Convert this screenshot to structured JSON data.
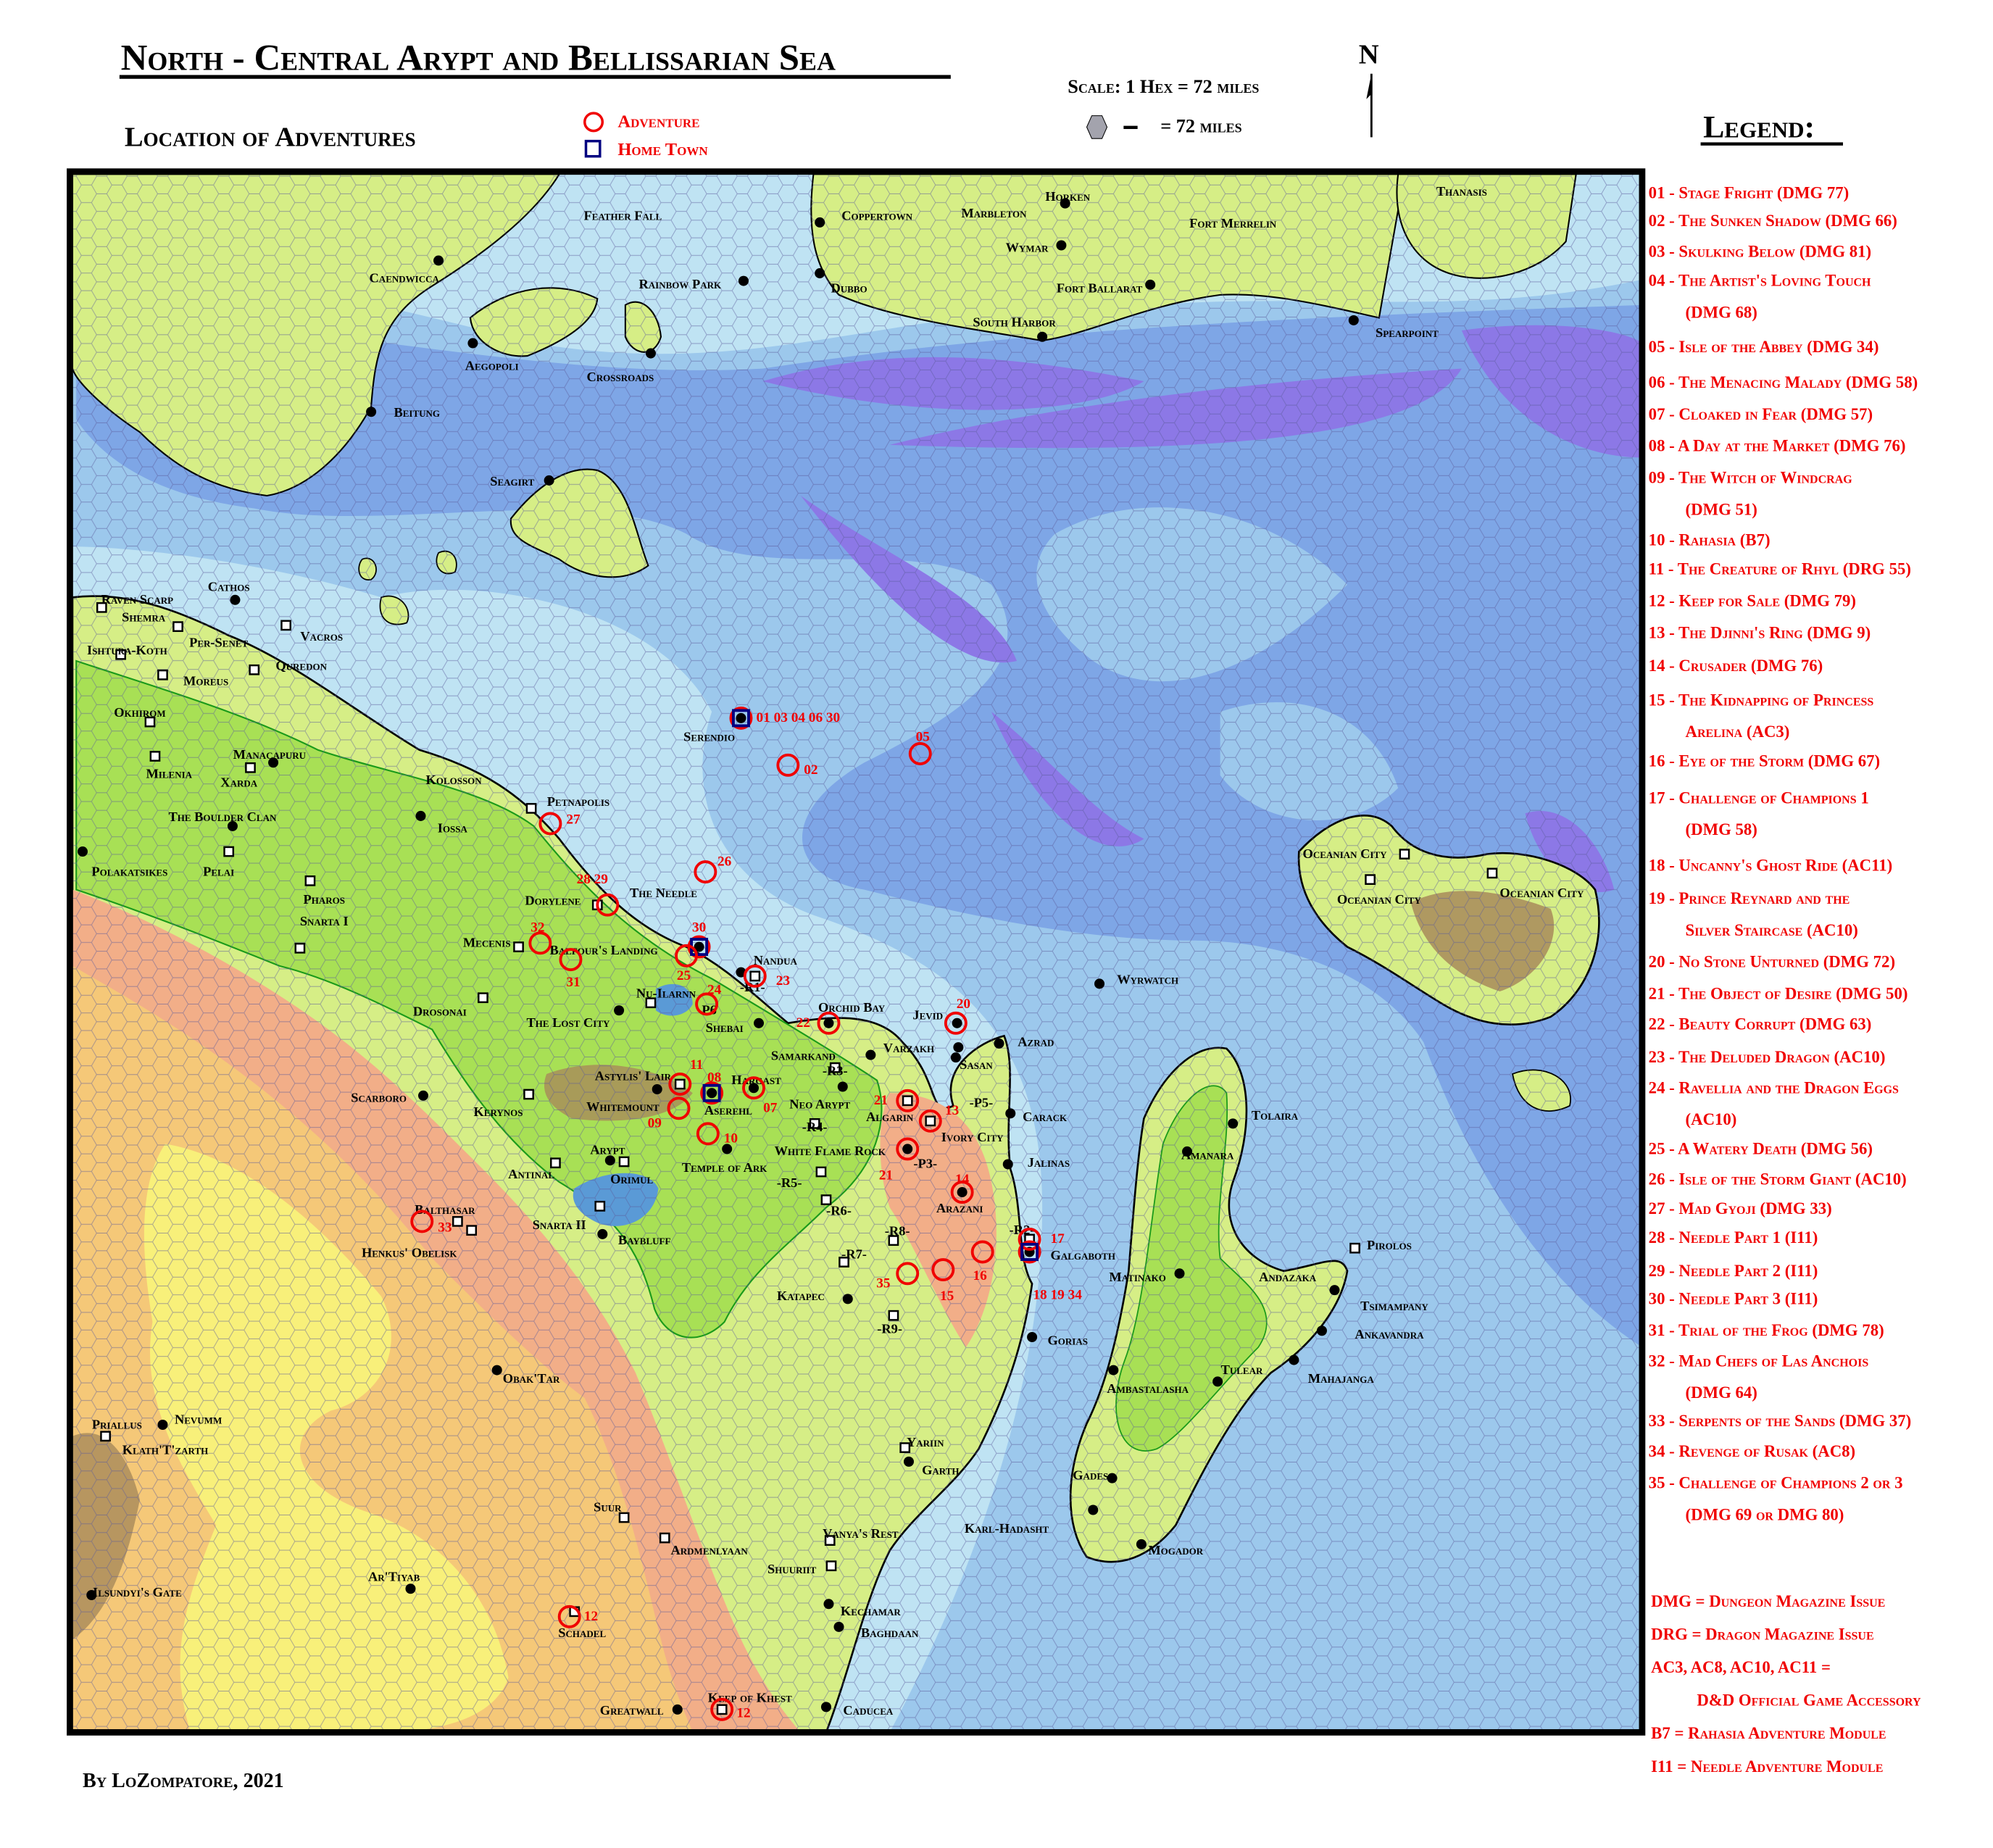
{
  "header": {
    "title": "North - Central Arypt and Bellissarian Sea",
    "subtitle": "Location of Adventures",
    "key_adventure": "Adventure",
    "key_home_town": "Home Town",
    "scale_text": "Scale: 1 Hex = 72 miles",
    "scale_hex_text": "= 72 miles",
    "north": "N",
    "credit": "By LoZompatore, 2021"
  },
  "colors": {
    "adventure": "#f00000",
    "home_town": "#000080",
    "ocean_shallow": "#bfe3f3",
    "ocean_mid": "#9cc8ec",
    "ocean_deep": "#7ea6e6",
    "ocean_trench": "#8c78e6",
    "grassland": "#d6ee86",
    "forest": "#a8e055",
    "hills": "#f2ae88",
    "desert": "#f5c878",
    "sand": "#f8f07a"
  },
  "legend": {
    "title": "Legend:",
    "entries": [
      {
        "line1": "01 - Stage Fright (DMG 77)"
      },
      {
        "line1": "02 - The Sunken Shadow (DMG 66)"
      },
      {
        "line1": "03 - Skulking Below (DMG 81)"
      },
      {
        "line1": "04 - The Artist's Loving Touch",
        "line2": "(DMG 68)"
      },
      {
        "line1": "05 - Isle of the Abbey (DMG 34)"
      },
      {
        "line1": "06 - The Menacing Malady (DMG 58)"
      },
      {
        "line1": "07 - Cloaked in Fear (DMG 57)"
      },
      {
        "line1": "08 - A Day at the Market (DMG 76)"
      },
      {
        "line1": "09 - The Witch of Windcrag",
        "line2": "(DMG 51)"
      },
      {
        "line1": "10 - Rahasia (B7)"
      },
      {
        "line1": "11 - The Creature of Rhyl (DRG 55)"
      },
      {
        "line1": "12 - Keep for Sale (DMG 79)"
      },
      {
        "line1": "13 - The Djinni's Ring (DMG 9)"
      },
      {
        "line1": "14 - Crusader (DMG 76)"
      },
      {
        "line1": "15 - The Kidnapping of Princess",
        "line2": "Arelina (AC3)"
      },
      {
        "line1": "16 - Eye of the Storm (DMG 67)"
      },
      {
        "line1": "17 - Challenge of Champions 1",
        "line2": "(DMG 58)"
      },
      {
        "line1": "18 - Uncanny's Ghost Ride (AC11)"
      },
      {
        "line1": "19 - Prince Reynard and the",
        "line2": "Silver Staircase (AC10)"
      },
      {
        "line1": "20 - No Stone Unturned (DMG 72)"
      },
      {
        "line1": "21 - The Object of Desire (DMG 50)"
      },
      {
        "line1": "22 - Beauty Corrupt (DMG 63)"
      },
      {
        "line1": "23 - The Deluded Dragon (AC10)"
      },
      {
        "line1": "24 - Ravellia and the Dragon Eggs",
        "line2": "(AC10)"
      },
      {
        "line1": "25 - A Watery Death (DMG 56)"
      },
      {
        "line1": "26 - Isle of the Storm Giant (AC10)"
      },
      {
        "line1": "27 - Mad Gyoji (DMG 33)"
      },
      {
        "line1": "28 - Needle Part 1 (I11)"
      },
      {
        "line1": "29 - Needle Part 2 (I11)"
      },
      {
        "line1": "30 - Needle Part 3 (I11)"
      },
      {
        "line1": "31 - Trial of the Frog (DMG 78)"
      },
      {
        "line1": "32 - Mad Chefs of Las Anchois",
        "line2": "(DMG 64)"
      },
      {
        "line1": "33 - Serpents of the Sands (DMG 37)"
      },
      {
        "line1": "34 - Revenge of Rusak (AC8)"
      },
      {
        "line1": "35 - Challenge of Champions 2 or 3",
        "line2": "(DMG 69 or DMG 80)"
      }
    ],
    "notes": [
      {
        "line1": "DMG = Dungeon Magazine Issue"
      },
      {
        "line1": "DRG = Dragon Magazine Issue"
      },
      {
        "line1": "AC3, AC8, AC10, AC11 =",
        "line2": "D&D Official Game Accessory"
      },
      {
        "line1": "B7 = Rahasia Adventure Module"
      },
      {
        "line1": "I11 = Needle Adventure Module"
      }
    ]
  },
  "places": [
    {
      "name": "Feather Fall",
      "marker": "none"
    },
    {
      "name": "Coppertown",
      "marker": "dot"
    },
    {
      "name": "Marbleton",
      "marker": "none"
    },
    {
      "name": "Horken",
      "marker": "dot"
    },
    {
      "name": "Fort Merrelin",
      "marker": "none"
    },
    {
      "name": "Thanasis",
      "marker": "none"
    },
    {
      "name": "Caendwicca",
      "marker": "dot"
    },
    {
      "name": "Rainbow Park",
      "marker": "dot"
    },
    {
      "name": "Dubbo",
      "marker": "dot"
    },
    {
      "name": "Wymar",
      "marker": "dot"
    },
    {
      "name": "Fort Ballarat",
      "marker": "dot"
    },
    {
      "name": "South Harbor",
      "marker": "dot"
    },
    {
      "name": "Spearpoint",
      "marker": "dot"
    },
    {
      "name": "Aegopoli",
      "marker": "dot"
    },
    {
      "name": "Crossroads",
      "marker": "dot"
    },
    {
      "name": "Beitung",
      "marker": "dot"
    },
    {
      "name": "Seagirt",
      "marker": "dot"
    },
    {
      "name": "Cathos",
      "marker": "dot"
    },
    {
      "name": "Raven Scarp",
      "marker": "none"
    },
    {
      "name": "Shemra",
      "marker": "square"
    },
    {
      "name": "Per-Senet",
      "marker": "square"
    },
    {
      "name": "Vacros",
      "marker": "square"
    },
    {
      "name": "Ishtura-Koth",
      "marker": "square"
    },
    {
      "name": "Quredon",
      "marker": "square"
    },
    {
      "name": "Moreus",
      "marker": "square"
    },
    {
      "name": "Okhirom",
      "marker": "square"
    },
    {
      "name": "Manacapuru",
      "marker": "dot"
    },
    {
      "name": "Milenia",
      "marker": "square"
    },
    {
      "name": "Xarda",
      "marker": "square"
    },
    {
      "name": "Kolosson",
      "marker": "none"
    },
    {
      "name": "Iossa",
      "marker": "dot"
    },
    {
      "name": "Petnapolis",
      "marker": "square"
    },
    {
      "name": "The Boulder Clan",
      "marker": "dot"
    },
    {
      "name": "Polakatsikes",
      "marker": "dot"
    },
    {
      "name": "Pelai",
      "marker": "square"
    },
    {
      "name": "Pharos",
      "marker": "square"
    },
    {
      "name": "Dorylene",
      "marker": "square"
    },
    {
      "name": "The Needle",
      "marker": "none"
    },
    {
      "name": "Snarta I",
      "marker": "square"
    },
    {
      "name": "Mecenis",
      "marker": "square"
    },
    {
      "name": "Balfour's Landing",
      "marker": "dot"
    },
    {
      "name": "Serendio",
      "marker": "dot"
    },
    {
      "name": "Nandua",
      "marker": "dot"
    },
    {
      "name": "Nu-Ilarnn",
      "marker": "square"
    },
    {
      "name": "P6",
      "marker": "none"
    },
    {
      "name": "-R1-",
      "marker": "square"
    },
    {
      "name": "Drosonai",
      "marker": "square"
    },
    {
      "name": "The Lost City",
      "marker": "dot"
    },
    {
      "name": "Shebai",
      "marker": "dot"
    },
    {
      "name": "Orchid Bay",
      "marker": "dot"
    },
    {
      "name": "Jevid",
      "marker": "dot"
    },
    {
      "name": "Azrad",
      "marker": "dot"
    },
    {
      "name": "Varzakh",
      "marker": "dot"
    },
    {
      "name": "Sasan",
      "marker": "dot"
    },
    {
      "name": "Samarkand",
      "marker": "dot"
    },
    {
      "name": "-R3-",
      "marker": "square"
    },
    {
      "name": "Astylis' Lair",
      "marker": "square"
    },
    {
      "name": "Hargast",
      "marker": "dot"
    },
    {
      "name": "Scarboro",
      "marker": "dot"
    },
    {
      "name": "Kerynos",
      "marker": "square"
    },
    {
      "name": "Whitemount",
      "marker": "dot"
    },
    {
      "name": "Aserehl",
      "marker": "dot"
    },
    {
      "name": "Neo Arypt",
      "marker": "dot"
    },
    {
      "name": "Algarin",
      "marker": "square"
    },
    {
      "name": "-P5-",
      "marker": "none"
    },
    {
      "name": "Carack",
      "marker": "dot"
    },
    {
      "name": "Ivory City",
      "marker": "square"
    },
    {
      "name": "-R4-",
      "marker": "square"
    },
    {
      "name": "White Flame Rock",
      "marker": "dot"
    },
    {
      "name": "-P3-",
      "marker": "none"
    },
    {
      "name": "Jalinas",
      "marker": "dot"
    },
    {
      "name": "Arypt",
      "marker": "dot"
    },
    {
      "name": "Antinal",
      "marker": "square"
    },
    {
      "name": "Temple of Ark",
      "marker": "dot"
    },
    {
      "name": "Orimul",
      "marker": "square"
    },
    {
      "name": "-R5-",
      "marker": "square"
    },
    {
      "name": "Arazani",
      "marker": "dot"
    },
    {
      "name": "-R6-",
      "marker": "square"
    },
    {
      "name": "Snarta II",
      "marker": "square"
    },
    {
      "name": "Balthasar",
      "marker": "square"
    },
    {
      "name": "Henkus' Obelisk",
      "marker": "square"
    },
    {
      "name": "Baybluff",
      "marker": "dot"
    },
    {
      "name": "-R8-",
      "marker": "square"
    },
    {
      "name": "-R7-",
      "marker": "square"
    },
    {
      "name": "-R2-",
      "marker": "square"
    },
    {
      "name": "Galgaboth",
      "marker": "dot"
    },
    {
      "name": "Matinako",
      "marker": "dot"
    },
    {
      "name": "Katapec",
      "marker": "dot"
    },
    {
      "name": "-R9-",
      "marker": "square"
    },
    {
      "name": "Gorias",
      "marker": "dot"
    },
    {
      "name": "Wyrwatch",
      "marker": "dot"
    },
    {
      "name": "Tolaira",
      "marker": "dot"
    },
    {
      "name": "Amanara",
      "marker": "dot"
    },
    {
      "name": "Pirolos",
      "marker": "square"
    },
    {
      "name": "Andazaka",
      "marker": "none"
    },
    {
      "name": "Tsimampany",
      "marker": "dot"
    },
    {
      "name": "Ankavandra",
      "marker": "dot"
    },
    {
      "name": "Mahajanga",
      "marker": "dot"
    },
    {
      "name": "Tulear",
      "marker": "dot"
    },
    {
      "name": "Ambastalasha",
      "marker": "dot"
    },
    {
      "name": "Oceanian City",
      "marker": "square"
    },
    {
      "name": "Oceanian City",
      "marker": "square"
    },
    {
      "name": "Oceanian City",
      "marker": "square"
    },
    {
      "name": "Obak'Tar",
      "marker": "dot"
    },
    {
      "name": "Priallus",
      "marker": "square"
    },
    {
      "name": "Nevumm",
      "marker": "dot"
    },
    {
      "name": "Klath'T'zarth",
      "marker": "none"
    },
    {
      "name": "Yariin",
      "marker": "square"
    },
    {
      "name": "Garth",
      "marker": "dot"
    },
    {
      "name": "Gades",
      "marker": "dot"
    },
    {
      "name": "Suur",
      "marker": "square"
    },
    {
      "name": "Karl-Hadasht",
      "marker": "dot"
    },
    {
      "name": "Vanya's Rest",
      "marker": "square"
    },
    {
      "name": "Mogador",
      "marker": "dot"
    },
    {
      "name": "Ardmenlyaan",
      "marker": "square"
    },
    {
      "name": "Shuuriit",
      "marker": "square"
    },
    {
      "name": "Ar'Tiyab",
      "marker": "dot"
    },
    {
      "name": "Ilsundyi's Gate",
      "marker": "dot"
    },
    {
      "name": "Kechamar",
      "marker": "dot"
    },
    {
      "name": "Schadel",
      "marker": "square"
    },
    {
      "name": "Baghdaan",
      "marker": "dot"
    },
    {
      "name": "Keep of Khest",
      "marker": "square"
    },
    {
      "name": "Greatwall",
      "marker": "dot"
    },
    {
      "name": "Caducea",
      "marker": "dot"
    }
  ],
  "adventures": [
    {
      "label": "01 03 04 06 30",
      "home_town": true
    },
    {
      "label": "02"
    },
    {
      "label": "05"
    },
    {
      "label": "26"
    },
    {
      "label": "27"
    },
    {
      "label": "28 29"
    },
    {
      "label": "30",
      "home_town": true
    },
    {
      "label": "25"
    },
    {
      "label": "32"
    },
    {
      "label": "31"
    },
    {
      "label": "23"
    },
    {
      "label": "24"
    },
    {
      "label": "22"
    },
    {
      "label": "20"
    },
    {
      "label": "11"
    },
    {
      "label": "08",
      "home_town": true
    },
    {
      "label": "07"
    },
    {
      "label": "09"
    },
    {
      "label": "10"
    },
    {
      "label": "21"
    },
    {
      "label": "13"
    },
    {
      "label": "21"
    },
    {
      "label": "14"
    },
    {
      "label": "17"
    },
    {
      "label": "18 19 34",
      "home_town": true
    },
    {
      "label": "16"
    },
    {
      "label": "15"
    },
    {
      "label": "35"
    },
    {
      "label": "33"
    },
    {
      "label": "12"
    },
    {
      "label": "12"
    }
  ]
}
